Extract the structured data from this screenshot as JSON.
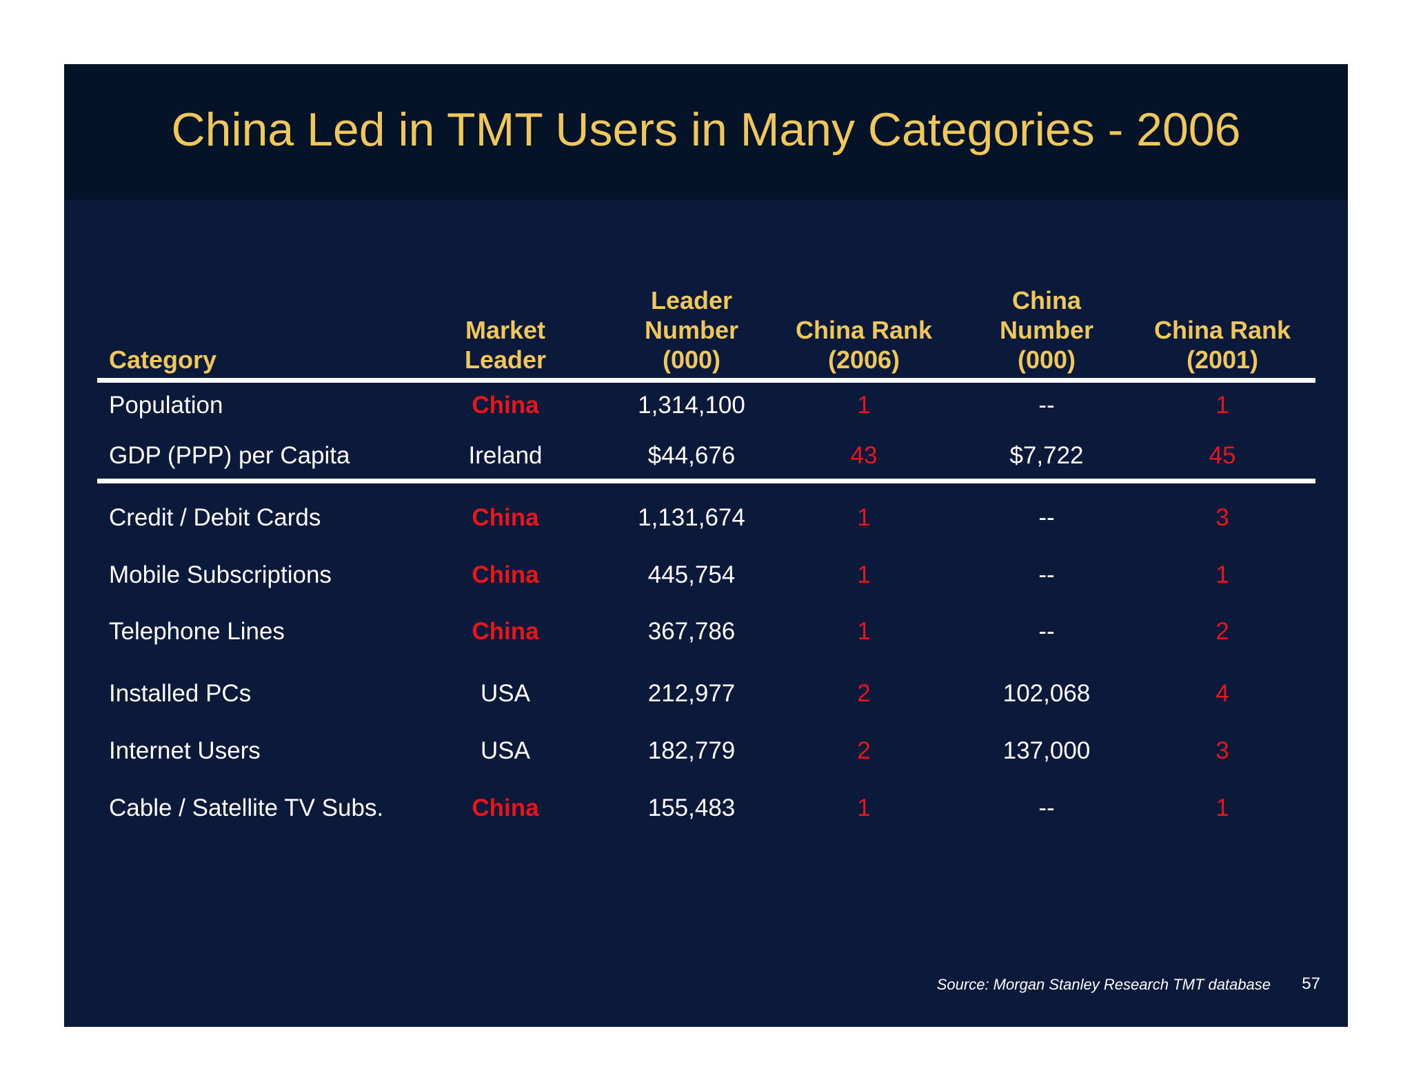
{
  "title": "China Led in TMT Users in Many Categories - 2006",
  "headers": {
    "category": "Category",
    "market_leader": "Market\nLeader",
    "leader_number": "Leader\nNumber\n(000)",
    "china_rank_2006": "China Rank\n(2006)",
    "china_number": "China\nNumber\n(000)",
    "china_rank_2001": "China Rank\n(2001)"
  },
  "rows": [
    {
      "category": "Population",
      "leader": "China",
      "leader_number": "1,314,100",
      "china_rank_2006": "1",
      "china_number": "--",
      "china_rank_2001": "1"
    },
    {
      "category": "GDP (PPP) per Capita",
      "leader": "Ireland",
      "leader_number": "$44,676",
      "china_rank_2006": "43",
      "china_number": "$7,722",
      "china_rank_2001": "45"
    },
    {
      "category": "Credit / Debit Cards",
      "leader": "China",
      "leader_number": "1,131,674",
      "china_rank_2006": "1",
      "china_number": "--",
      "china_rank_2001": "3"
    },
    {
      "category": "Mobile Subscriptions",
      "leader": "China",
      "leader_number": "445,754",
      "china_rank_2006": "1",
      "china_number": "--",
      "china_rank_2001": "1"
    },
    {
      "category": "Telephone Lines",
      "leader": "China",
      "leader_number": "367,786",
      "china_rank_2006": "1",
      "china_number": "--",
      "china_rank_2001": "2"
    },
    {
      "category": "Installed PCs",
      "leader": "USA",
      "leader_number": "212,977",
      "china_rank_2006": "2",
      "china_number": "102,068",
      "china_rank_2001": "4"
    },
    {
      "category": "Internet Users",
      "leader": "USA",
      "leader_number": "182,779",
      "china_rank_2006": "2",
      "china_number": "137,000",
      "china_rank_2001": "3"
    },
    {
      "category": "Cable / Satellite TV Subs.",
      "leader": "China",
      "leader_number": "155,483",
      "china_rank_2006": "1",
      "china_number": "--",
      "china_rank_2001": "1"
    }
  ],
  "source": "Source: Morgan Stanley Research TMT database",
  "page_number": "57",
  "colors": {
    "background": "#0b1a3b",
    "title_band": "#051329",
    "gold": "#f0c75a",
    "highlight_red": "#e8161a",
    "text": "#ffffff"
  }
}
